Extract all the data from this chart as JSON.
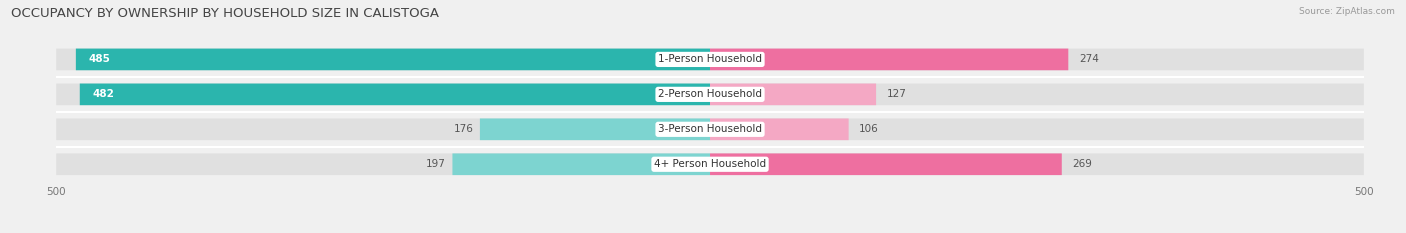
{
  "title": "OCCUPANCY BY OWNERSHIP BY HOUSEHOLD SIZE IN CALISTOGA",
  "source": "Source: ZipAtlas.com",
  "categories": [
    "1-Person Household",
    "2-Person Household",
    "3-Person Household",
    "4+ Person Household"
  ],
  "owner_values": [
    485,
    482,
    176,
    197
  ],
  "renter_values": [
    274,
    127,
    106,
    269
  ],
  "owner_color_large": "#2BB5AD",
  "owner_color_small": "#7DD4D0",
  "renter_color_large": "#EE6FA0",
  "renter_color_small": "#F4A8C4",
  "max_val": 500,
  "bg_color": "#f0f0f0",
  "bar_bg_color": "#e0e0e0",
  "title_fontsize": 9.5,
  "label_fontsize": 7.5,
  "value_fontsize": 7.5,
  "axis_tick_fontsize": 7.5,
  "owner_threshold": 300,
  "renter_threshold": 200
}
